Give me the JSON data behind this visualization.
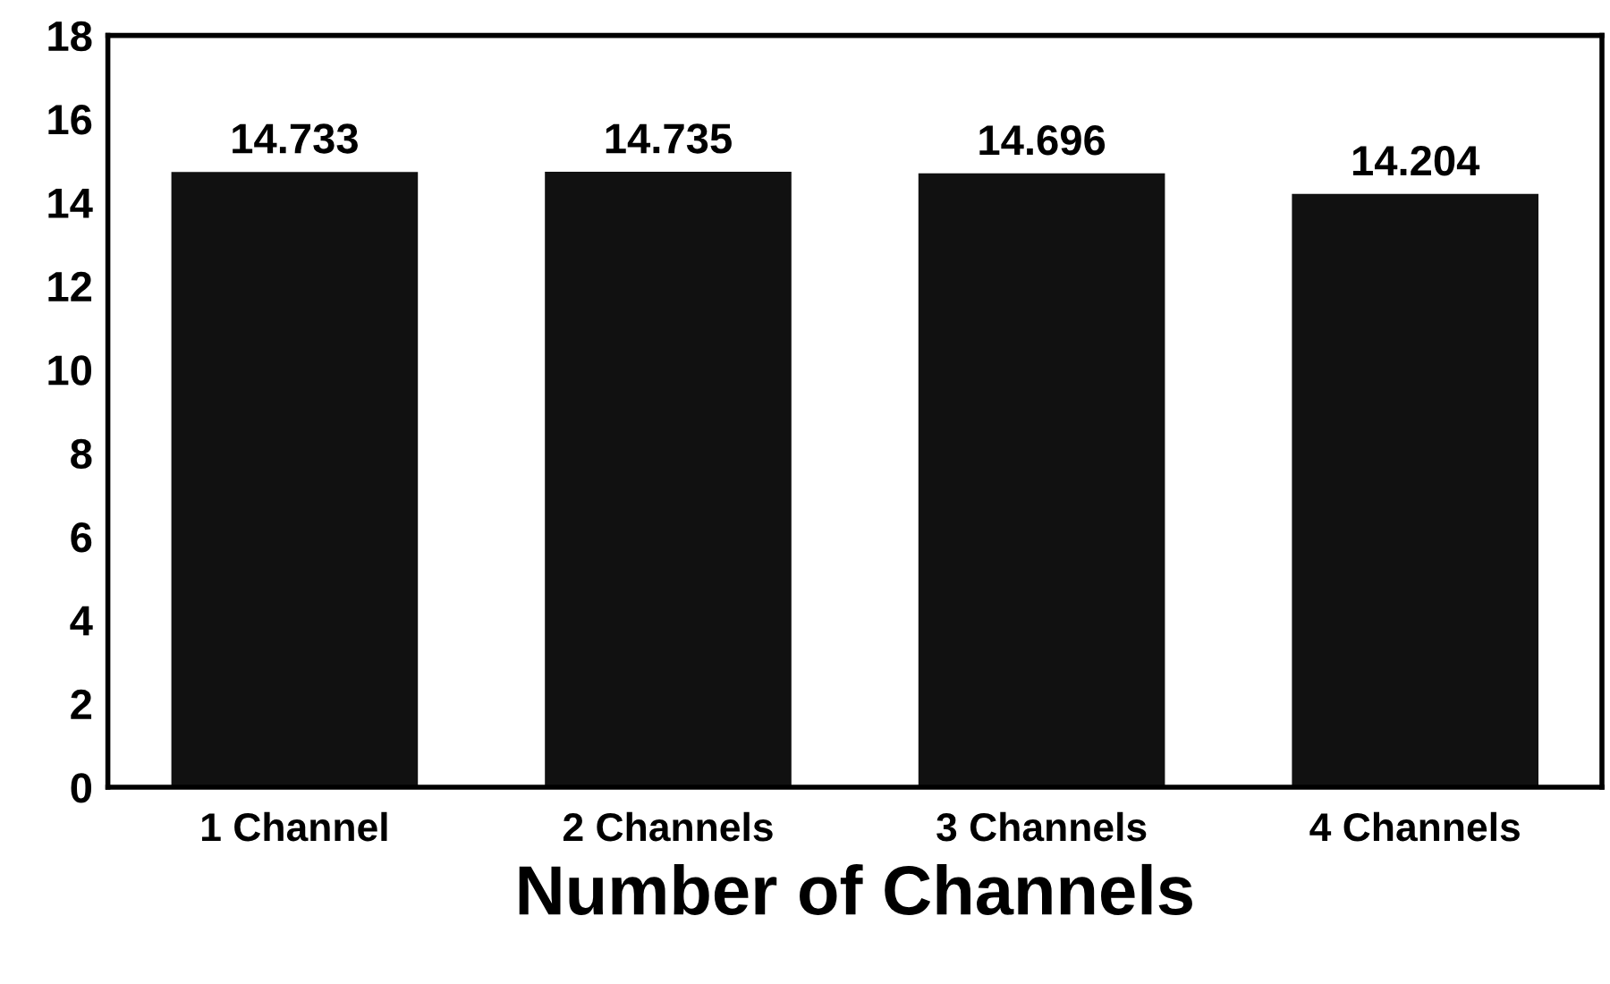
{
  "chart_data": {
    "type": "bar",
    "xlabel": "Number of Channels",
    "categories": [
      "1 Channel",
      "2 Channels",
      "3 Channels",
      "4 Channels"
    ],
    "values": [
      14.733,
      14.735,
      14.696,
      14.204
    ],
    "color": "#111111",
    "ylim": [
      0,
      18
    ],
    "yticks": [
      0,
      2,
      4,
      6,
      8,
      10,
      12,
      14,
      16,
      18
    ],
    "grid": false,
    "data_labels": true
  }
}
